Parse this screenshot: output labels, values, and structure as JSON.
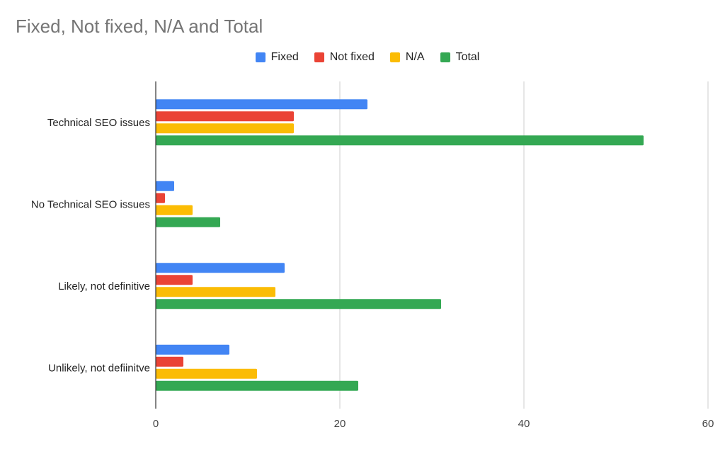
{
  "chart_data": {
    "type": "bar",
    "orientation": "horizontal",
    "title": "Fixed, Not fixed, N/A and Total",
    "categories": [
      "Technical SEO issues",
      "No Technical SEO issues",
      "Likely, not definitive",
      "Unlikely, not defiinitve"
    ],
    "series": [
      {
        "name": "Fixed",
        "color": "#4285F4",
        "values": [
          23,
          2,
          14,
          8
        ]
      },
      {
        "name": "Not fixed",
        "color": "#EA4335",
        "values": [
          15,
          1,
          4,
          3
        ]
      },
      {
        "name": "N/A",
        "color": "#FBBC04",
        "values": [
          15,
          4,
          13,
          11
        ]
      },
      {
        "name": "Total",
        "color": "#34A853",
        "values": [
          53,
          7,
          31,
          22
        ]
      }
    ],
    "xlim": [
      0,
      60
    ],
    "xticks": [
      "0",
      "20",
      "40",
      "60"
    ],
    "grid": true,
    "legend": "top",
    "xlabel": "",
    "ylabel": ""
  }
}
